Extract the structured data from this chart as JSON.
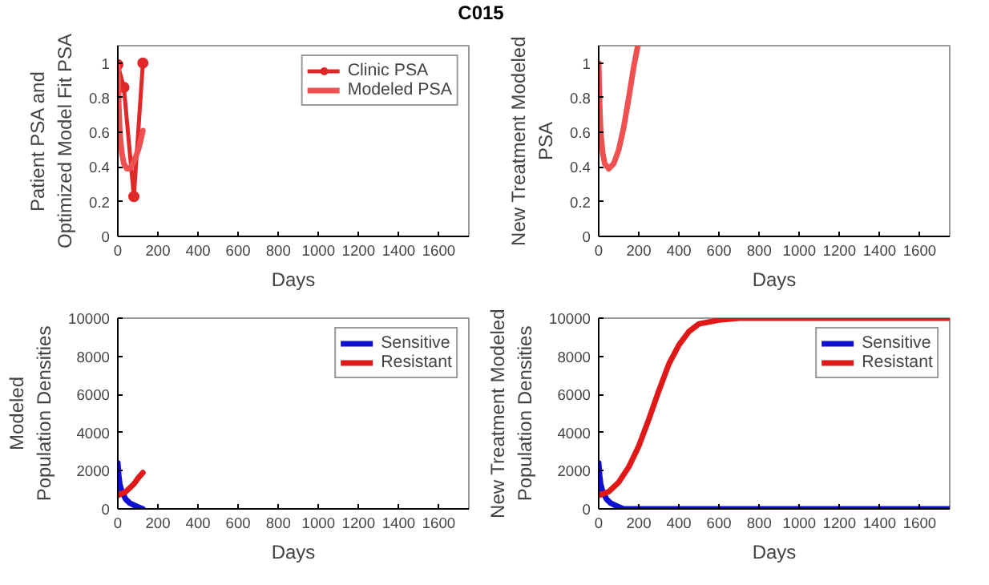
{
  "chart_data": [
    {
      "type": "line",
      "title": "C015",
      "xlabel": "Days",
      "ylabel": "Patient PSA and\nOptimized Model Fit PSA",
      "xlim": [
        0,
        1750
      ],
      "xticks": [
        0,
        200,
        400,
        600,
        800,
        1000,
        1200,
        1400,
        1600
      ],
      "ylim": [
        0,
        1.1
      ],
      "yticks": [
        0,
        0.2,
        0.4,
        0.6,
        0.8,
        1
      ],
      "legend": "top right",
      "grid": false,
      "series": [
        {
          "name": "Clinic PSA",
          "color": "#e02828",
          "marker": "circle",
          "x": [
            0,
            30,
            80,
            125
          ],
          "values": [
            0.99,
            0.86,
            0.23,
            1.0
          ]
        },
        {
          "name": "Modeled PSA",
          "color": "#f05050",
          "marker": "none",
          "x": [
            0,
            5,
            10,
            20,
            30,
            45,
            60,
            75,
            90,
            105,
            115,
            125
          ],
          "values": [
            0.99,
            0.75,
            0.6,
            0.48,
            0.42,
            0.39,
            0.39,
            0.42,
            0.46,
            0.51,
            0.56,
            0.61
          ]
        }
      ]
    },
    {
      "type": "line",
      "xlabel": "Days",
      "ylabel": "New Treatment Modeled\nPSA",
      "xlim": [
        0,
        1750
      ],
      "xticks": [
        0,
        200,
        400,
        600,
        800,
        1000,
        1200,
        1400,
        1600
      ],
      "ylim": [
        0,
        1.1
      ],
      "yticks": [
        0,
        0.2,
        0.4,
        0.6,
        0.8,
        1
      ],
      "legend": false,
      "grid": false,
      "series": [
        {
          "color": "#f05050",
          "marker": "none",
          "x": [
            0,
            5,
            10,
            20,
            30,
            50,
            75,
            100,
            125,
            150,
            175,
            195
          ],
          "values": [
            1.0,
            0.75,
            0.6,
            0.48,
            0.42,
            0.39,
            0.42,
            0.5,
            0.63,
            0.8,
            0.98,
            1.1
          ]
        }
      ]
    },
    {
      "type": "line",
      "xlabel": "Days",
      "ylabel": "Modeled\nPopulation Densities",
      "xlim": [
        0,
        1750
      ],
      "xticks": [
        0,
        200,
        400,
        600,
        800,
        1000,
        1200,
        1400,
        1600
      ],
      "ylim": [
        0,
        10000
      ],
      "yticks": [
        0,
        2000,
        4000,
        6000,
        8000,
        10000
      ],
      "legend": "top right",
      "grid": false,
      "series": [
        {
          "name": "Sensitive",
          "color": "#1010d0",
          "marker": "none",
          "x": [
            0,
            5,
            10,
            20,
            40,
            60,
            80,
            100,
            125
          ],
          "values": [
            2400,
            1700,
            1300,
            900,
            500,
            300,
            200,
            100,
            0
          ]
        },
        {
          "name": "Resistant",
          "color": "#e01818",
          "marker": "none",
          "x": [
            0,
            20,
            40,
            60,
            80,
            100,
            125
          ],
          "values": [
            700,
            800,
            900,
            1100,
            1300,
            1600,
            1900
          ]
        }
      ]
    },
    {
      "type": "line",
      "xlabel": "Days",
      "ylabel": "New Treatment Modeled\nPopulation Densities",
      "xlim": [
        0,
        1750
      ],
      "xticks": [
        0,
        200,
        400,
        600,
        800,
        1000,
        1200,
        1400,
        1600
      ],
      "ylim": [
        0,
        10000
      ],
      "yticks": [
        0,
        2000,
        4000,
        6000,
        8000,
        10000
      ],
      "legend": "top right",
      "grid": false,
      "series": [
        {
          "name": "Sensitive",
          "color": "#1010d0",
          "marker": "none",
          "x": [
            0,
            5,
            10,
            20,
            40,
            60,
            80,
            100,
            125,
            200,
            400,
            800,
            1200,
            1750
          ],
          "values": [
            2400,
            1700,
            1300,
            900,
            500,
            300,
            200,
            100,
            0,
            0,
            0,
            0,
            0,
            0
          ]
        },
        {
          "name": "Resistant",
          "color": "#e01818",
          "marker": "none",
          "x": [
            0,
            50,
            100,
            150,
            200,
            250,
            300,
            350,
            400,
            450,
            500,
            600,
            700,
            800,
            1750
          ],
          "values": [
            700,
            900,
            1400,
            2200,
            3300,
            4700,
            6200,
            7600,
            8600,
            9300,
            9700,
            9900,
            10000,
            10000,
            10000
          ]
        }
      ]
    }
  ]
}
